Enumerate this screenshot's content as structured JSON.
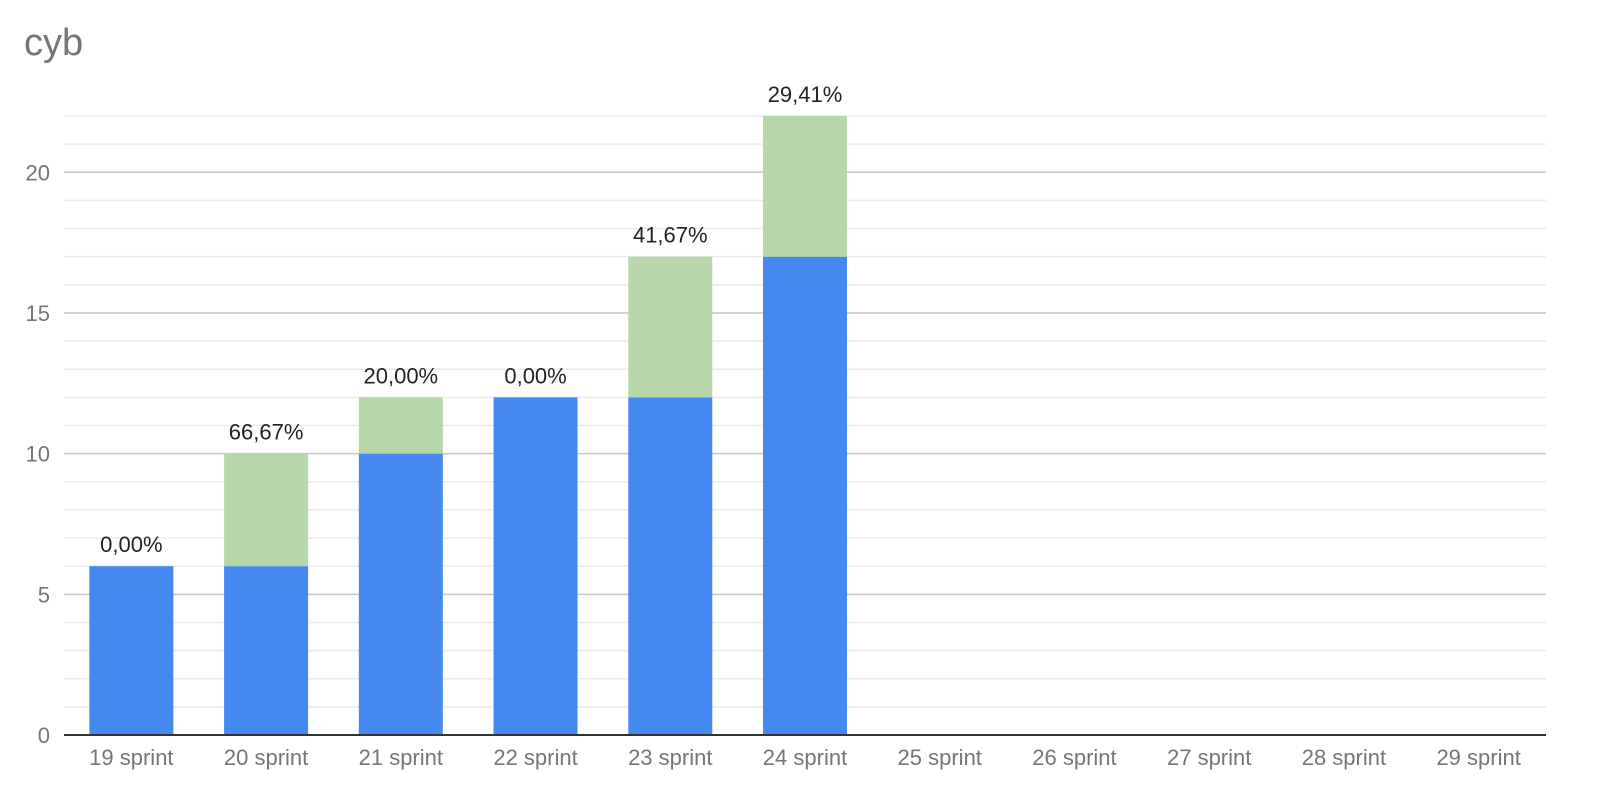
{
  "chart_data": {
    "type": "bar",
    "stacked": true,
    "title": "cyb",
    "categories": [
      "19 sprint",
      "20 sprint",
      "21 sprint",
      "22 sprint",
      "23 sprint",
      "24 sprint",
      "25 sprint",
      "26 sprint",
      "27 sprint",
      "28 sprint",
      "29 sprint"
    ],
    "series": [
      {
        "values": [
          6,
          6,
          10,
          12,
          12,
          17,
          0,
          0,
          0,
          0,
          0
        ],
        "color": "#4589f0"
      },
      {
        "values": [
          0,
          4,
          2,
          0,
          5,
          5,
          0,
          0,
          0,
          0,
          0
        ],
        "color": "#b7d7aa"
      }
    ],
    "data_labels": [
      "0,00%",
      "66,67%",
      "20,00%",
      "0,00%",
      "41,67%",
      "29,41%",
      "",
      "",
      "",
      "",
      ""
    ],
    "y_ticks": [
      0,
      5,
      10,
      15,
      20
    ],
    "ylim": [
      0,
      22
    ],
    "minor_grid_step": 1,
    "grid": true,
    "xlabel": "",
    "ylabel": "",
    "legend": "none"
  }
}
